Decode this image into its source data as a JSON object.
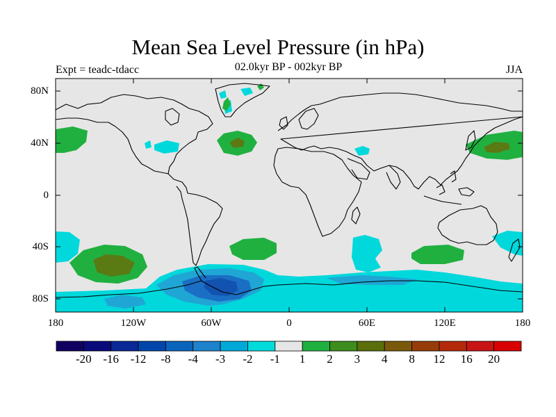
{
  "header": {
    "title": "Mean Sea Level Pressure (in hPa)",
    "experiment": "Expt = teadc-tdacc",
    "period": "02.0kyr BP - 002kyr BP",
    "season": "JJA"
  },
  "map": {
    "projection": "cylindrical-equidistant",
    "lon_range": [
      -180,
      180
    ],
    "lat_range": [
      -90,
      90
    ],
    "background_color": "#e6e6e6",
    "coastline_color": "#000000",
    "y_ticks": [
      "80N",
      "40N",
      "0",
      "40S",
      "80S"
    ],
    "x_ticks": [
      "180",
      "120W",
      "60W",
      "0",
      "60E",
      "120E",
      "180"
    ]
  },
  "colorbar": {
    "colors": [
      "#100060",
      "#0a0a7a",
      "#0a2896",
      "#0046aa",
      "#0a64bc",
      "#1e82cc",
      "#00aad8",
      "#00dcdc",
      "#e6e6e6",
      "#20b040",
      "#3c8c1e",
      "#5a6e0a",
      "#7a5a0a",
      "#963c0a",
      "#b4280a",
      "#c81414",
      "#d80000"
    ],
    "labels": [
      "-20",
      "-16",
      "-12",
      "-8",
      "-4",
      "-3",
      "-2",
      "-1",
      "1",
      "2",
      "3",
      "4",
      "8",
      "12",
      "16",
      "20"
    ]
  },
  "anomaly_legend": {
    "cyan": "#00d8dc",
    "lightblue": "#1fa6d4",
    "blue": "#1a6ec4",
    "darkblue": "#1252b0",
    "green": "#20b040",
    "darkgreen": "#3c8c1e",
    "olive": "#5a7a14"
  }
}
